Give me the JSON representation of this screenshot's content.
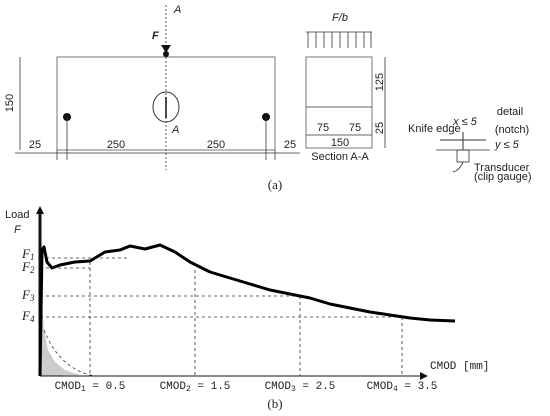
{
  "panel_a": {
    "section_marks": [
      "A",
      "A"
    ],
    "load": "F",
    "height": "150",
    "spans": [
      "25",
      "250",
      "250",
      "25"
    ],
    "section": {
      "load": "F/b",
      "upper": "125",
      "lower": "25",
      "halves": [
        "75",
        "75"
      ],
      "width": "150",
      "title": "Section A-A"
    },
    "detail": {
      "title": "detail",
      "subtitle": "(notch)",
      "x_limit": "x ≤ 5",
      "y_limit": "y ≤ 5",
      "knife": "Knife edge",
      "transducer": "Transducer",
      "gauge": "(clip gauge)"
    },
    "caption": "(a)"
  },
  "panel_b": {
    "y_label": "Load",
    "y_symbol": "F",
    "loads": [
      {
        "base": "F",
        "sub": "1"
      },
      {
        "base": "F",
        "sub": "2"
      },
      {
        "base": "F",
        "sub": "3"
      },
      {
        "base": "F",
        "sub": "4"
      }
    ],
    "x_label": "CMOD [mm]",
    "cmods": [
      {
        "base": "CMOD",
        "sub": "1",
        "value": " = 0.5"
      },
      {
        "base": "CMOD",
        "sub": "2",
        "value": " = 1.5"
      },
      {
        "base": "CMOD",
        "sub": "3",
        "value": " = 2.5"
      },
      {
        "base": "CMOD",
        "sub": "4",
        "value": " = 3.5"
      }
    ],
    "caption": "(b)"
  }
}
